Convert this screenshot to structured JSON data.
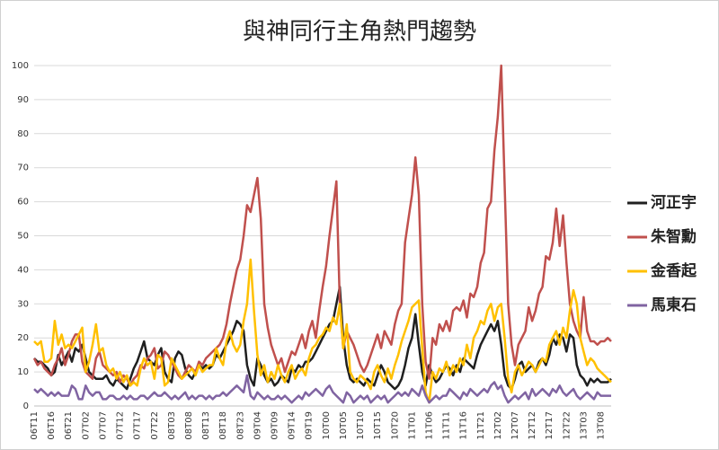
{
  "chart_data": {
    "type": "line",
    "title": "與神同行主角熱門趨勢",
    "categories": [
      "06T11",
      null,
      null,
      null,
      null,
      "06T16",
      null,
      null,
      null,
      null,
      "06T21",
      null,
      null,
      null,
      null,
      "07T02",
      null,
      null,
      null,
      null,
      "07T07",
      null,
      null,
      null,
      null,
      "07T12",
      null,
      null,
      null,
      null,
      "07T17",
      null,
      null,
      null,
      null,
      "07T22",
      null,
      null,
      null,
      null,
      "08T03",
      null,
      null,
      null,
      null,
      "08T08",
      null,
      null,
      null,
      null,
      "08T13",
      null,
      null,
      null,
      null,
      "08T18",
      null,
      null,
      null,
      null,
      "08T23",
      null,
      null,
      null,
      null,
      "09T04",
      null,
      null,
      null,
      null,
      "09T09",
      null,
      null,
      null,
      null,
      "09T14",
      null,
      null,
      null,
      null,
      "09T19",
      null,
      null,
      null,
      null,
      "10T00",
      null,
      null,
      null,
      null,
      "10T05",
      null,
      null,
      null,
      null,
      "10T10",
      null,
      null,
      null,
      null,
      "10T15",
      null,
      null,
      null,
      null,
      "10T20",
      null,
      null,
      null,
      null,
      "11T01",
      null,
      null,
      null,
      null,
      "11T06",
      null,
      null,
      null,
      null,
      "11T11",
      null,
      null,
      null,
      null,
      "11T16",
      null,
      null,
      null,
      null,
      "11T21",
      null,
      null,
      null,
      null,
      "12T02",
      null,
      null,
      null,
      null,
      "12T07",
      null,
      null,
      null,
      null,
      "12T12",
      null,
      null,
      null,
      null,
      "12T17",
      null,
      null,
      null,
      null,
      "12T22",
      null,
      null,
      null,
      null,
      "13T03",
      null,
      null,
      null,
      null,
      "13T08",
      null,
      null,
      null
    ],
    "series": [
      {
        "name": "河正宇",
        "color": "#1f1f1f",
        "values": [
          14,
          13,
          13,
          12,
          11,
          9,
          10,
          15,
          12,
          14,
          16,
          13,
          17,
          16,
          18,
          14,
          10,
          9,
          8,
          8,
          8,
          9,
          7,
          6,
          8,
          7,
          6,
          5,
          8,
          11,
          13,
          16,
          19,
          14,
          13,
          12,
          15,
          17,
          10,
          8,
          7,
          14,
          16,
          15,
          11,
          9,
          8,
          10,
          12,
          11,
          12,
          11,
          12,
          15,
          14,
          16,
          18,
          20,
          22,
          25,
          24,
          22,
          12,
          8,
          6,
          14,
          12,
          9,
          7,
          8,
          6,
          7,
          9,
          8,
          7,
          11,
          10,
          12,
          11,
          13,
          13,
          14,
          16,
          18,
          20,
          22,
          24,
          25,
          30,
          35,
          20,
          12,
          8,
          7,
          8,
          7,
          6,
          8,
          7,
          6,
          9,
          12,
          10,
          7,
          6,
          5,
          6,
          8,
          12,
          17,
          20,
          27,
          18,
          10,
          6,
          12,
          9,
          7,
          8,
          10,
          12,
          11,
          9,
          12,
          10,
          14,
          13,
          12,
          11,
          15,
          18,
          20,
          22,
          24,
          22,
          25,
          18,
          9,
          6,
          5,
          8,
          12,
          13,
          10,
          11,
          12,
          10,
          13,
          14,
          12,
          15,
          20,
          18,
          21,
          20,
          16,
          21,
          20,
          12,
          9,
          8,
          6,
          8,
          7,
          8,
          7,
          7,
          7,
          8
        ]
      },
      {
        "name": "朱智勳",
        "color": "#c0504d",
        "values": [
          14,
          12,
          13,
          11,
          10,
          9,
          12,
          14,
          17,
          12,
          15,
          19,
          21,
          21,
          13,
          10,
          9,
          8,
          14,
          16,
          12,
          11,
          10,
          9,
          10,
          7,
          9,
          8,
          6,
          8,
          9,
          12,
          11,
          14,
          15,
          17,
          11,
          12,
          16,
          15,
          13,
          11,
          9,
          8,
          10,
          12,
          11,
          10,
          13,
          12,
          14,
          15,
          16,
          17,
          18,
          20,
          24,
          30,
          35,
          40,
          43,
          50,
          59,
          57,
          62,
          67,
          55,
          30,
          23,
          18,
          15,
          12,
          14,
          10,
          13,
          16,
          15,
          18,
          21,
          17,
          22,
          25,
          20,
          28,
          35,
          41,
          50,
          58,
          66,
          30,
          17,
          22,
          20,
          18,
          15,
          12,
          10,
          12,
          15,
          18,
          21,
          17,
          22,
          20,
          18,
          24,
          28,
          30,
          48,
          55,
          62,
          73,
          62,
          30,
          13,
          8,
          20,
          18,
          24,
          22,
          25,
          22,
          28,
          29,
          28,
          31,
          26,
          33,
          32,
          35,
          42,
          45,
          58,
          60,
          75,
          85,
          100,
          65,
          30,
          18,
          12,
          18,
          20,
          22,
          29,
          25,
          28,
          33,
          35,
          44,
          43,
          48,
          58,
          47,
          56,
          42,
          30,
          25,
          22,
          20,
          32,
          22,
          19,
          19,
          18,
          19,
          19,
          20,
          19
        ]
      },
      {
        "name": "金香起",
        "color": "#ffc000",
        "values": [
          19,
          18,
          19,
          13,
          13,
          14,
          25,
          18,
          21,
          17,
          18,
          17,
          19,
          21,
          23,
          10,
          13,
          18,
          24,
          16,
          17,
          12,
          10,
          11,
          8,
          10,
          7,
          9,
          6,
          7,
          6,
          11,
          14,
          12,
          13,
          8,
          15,
          14,
          6,
          7,
          14,
          12,
          10,
          8,
          9,
          10,
          11,
          9,
          12,
          10,
          11,
          12,
          12,
          17,
          14,
          12,
          19,
          22,
          18,
          16,
          18,
          25,
          30,
          43,
          28,
          15,
          9,
          12,
          7,
          10,
          8,
          12,
          9,
          7,
          10,
          12,
          8,
          10,
          11,
          9,
          14,
          17,
          18,
          20,
          21,
          23,
          22,
          26,
          24,
          30,
          17,
          24,
          10,
          8,
          7,
          9,
          8,
          7,
          5,
          10,
          12,
          9,
          7,
          11,
          8,
          12,
          15,
          19,
          22,
          25,
          29,
          30,
          31,
          17,
          4,
          1,
          10,
          8,
          11,
          10,
          13,
          9,
          12,
          10,
          14,
          12,
          18,
          14,
          20,
          22,
          25,
          24,
          28,
          30,
          25,
          29,
          30,
          20,
          8,
          4,
          10,
          12,
          9,
          11,
          13,
          12,
          10,
          12,
          14,
          13,
          18,
          20,
          22,
          18,
          23,
          20,
          28,
          34,
          30,
          20,
          16,
          12,
          14,
          13,
          11,
          10,
          9,
          8,
          7
        ]
      },
      {
        "name": "馬東石",
        "color": "#8064a2",
        "values": [
          5,
          4,
          5,
          4,
          3,
          4,
          3,
          4,
          3,
          3,
          3,
          6,
          5,
          2,
          2,
          6,
          4,
          3,
          4,
          4,
          2,
          2,
          3,
          3,
          2,
          2,
          3,
          2,
          3,
          2,
          2,
          3,
          3,
          2,
          3,
          4,
          3,
          3,
          4,
          3,
          2,
          3,
          2,
          3,
          4,
          2,
          3,
          2,
          3,
          3,
          2,
          3,
          2,
          3,
          3,
          4,
          3,
          4,
          5,
          6,
          5,
          4,
          9,
          3,
          2,
          4,
          3,
          2,
          3,
          2,
          2,
          3,
          2,
          3,
          2,
          1,
          2,
          3,
          2,
          4,
          3,
          4,
          5,
          4,
          3,
          5,
          6,
          4,
          3,
          2,
          1,
          4,
          3,
          1,
          2,
          3,
          2,
          3,
          1,
          2,
          3,
          2,
          3,
          1,
          2,
          3,
          4,
          3,
          4,
          3,
          5,
          4,
          3,
          6,
          3,
          1,
          2,
          3,
          2,
          3,
          3,
          5,
          4,
          3,
          2,
          4,
          3,
          5,
          4,
          3,
          4,
          5,
          4,
          6,
          7,
          5,
          6,
          3,
          1,
          2,
          3,
          2,
          3,
          4,
          2,
          5,
          3,
          4,
          5,
          4,
          3,
          5,
          4,
          6,
          4,
          3,
          4,
          5,
          3,
          2,
          3,
          4,
          3,
          2,
          4,
          3,
          3,
          3,
          3
        ]
      }
    ],
    "ylim": [
      0,
      100
    ],
    "yticks": [
      0,
      10,
      20,
      30,
      40,
      50,
      60,
      70,
      80,
      90,
      100
    ],
    "grid": true,
    "legend": "right"
  }
}
